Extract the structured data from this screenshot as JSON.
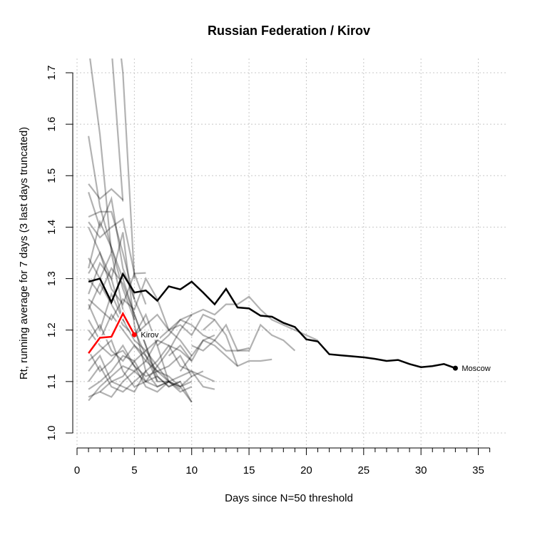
{
  "chart_data": {
    "type": "line",
    "title": "Russian Federation / Kirov",
    "xlabel": "Days since N=50 threshold",
    "ylabel": "Rt, running average for 7 days (3 last days truncated)",
    "xlim": [
      0,
      36
    ],
    "ylim": [
      1.0,
      1.7
    ],
    "x_ticks": [
      0,
      5,
      10,
      15,
      20,
      25,
      30,
      35
    ],
    "x_minor_ticks": [
      1,
      2,
      3,
      4,
      6,
      7,
      8,
      9,
      11,
      12,
      13,
      14,
      16,
      17,
      18,
      19,
      21,
      22,
      23,
      24,
      26,
      27,
      28,
      29,
      31,
      32,
      33,
      34,
      36
    ],
    "y_ticks": [
      1.0,
      1.1,
      1.2,
      1.3,
      1.4,
      1.5,
      1.6,
      1.7
    ],
    "grid": true,
    "colors": {
      "highlight": "#ff0000",
      "reference": "#000000",
      "background": "#999999"
    },
    "series": [
      {
        "name": "Kirov",
        "role": "highlight",
        "label": "Kirov",
        "x": [
          1,
          2,
          3,
          4,
          5
        ],
        "y": [
          1.155,
          1.185,
          1.187,
          1.232,
          1.191
        ]
      },
      {
        "name": "Moscow",
        "role": "reference",
        "label": "Moscow",
        "x": [
          1,
          2,
          3,
          4,
          5,
          6,
          7,
          8,
          9,
          10,
          11,
          12,
          13,
          14,
          15,
          16,
          17,
          18,
          19,
          20,
          21,
          22,
          23,
          24,
          25,
          26,
          27,
          28,
          29,
          30,
          31,
          32,
          33
        ],
        "y": [
          1.294,
          1.3,
          1.254,
          1.309,
          1.273,
          1.277,
          1.257,
          1.285,
          1.279,
          1.294,
          1.273,
          1.25,
          1.28,
          1.244,
          1.242,
          1.228,
          1.226,
          1.214,
          1.206,
          1.182,
          1.178,
          1.153,
          1.151,
          1.149,
          1.147,
          1.144,
          1.14,
          1.142,
          1.134,
          1.128,
          1.13,
          1.134,
          1.126
        ]
      }
    ],
    "background_series": [
      {
        "x": [
          1,
          2,
          3
        ],
        "y": [
          1.75,
          1.58,
          1.35
        ]
      },
      {
        "x": [
          2,
          3,
          4
        ],
        "y": [
          1.9,
          1.75,
          1.45
        ]
      },
      {
        "x": [
          3,
          4,
          5
        ],
        "y": [
          1.9,
          1.7,
          1.3
        ]
      },
      {
        "x": [
          1,
          2,
          3,
          4,
          5
        ],
        "y": [
          1.577,
          1.44,
          1.36,
          1.28,
          1.22
        ]
      },
      {
        "x": [
          1,
          2,
          3,
          4
        ],
        "y": [
          1.484,
          1.455,
          1.474,
          1.453
        ]
      },
      {
        "x": [
          1,
          2,
          3,
          4,
          5
        ],
        "y": [
          1.468,
          1.4,
          1.455,
          1.32,
          1.26
        ]
      },
      {
        "x": [
          1,
          2,
          3,
          4,
          5,
          6
        ],
        "y": [
          1.42,
          1.43,
          1.43,
          1.35,
          1.26,
          1.21
        ]
      },
      {
        "x": [
          1,
          2,
          3,
          4,
          5,
          6
        ],
        "y": [
          1.41,
          1.38,
          1.4,
          1.416,
          1.31,
          1.25
        ]
      },
      {
        "x": [
          1,
          2,
          3,
          4,
          5,
          6
        ],
        "y": [
          1.4,
          1.35,
          1.3,
          1.39,
          1.21,
          1.12
        ]
      },
      {
        "x": [
          1,
          2,
          3,
          4,
          5,
          6,
          7
        ],
        "y": [
          1.32,
          1.41,
          1.36,
          1.3,
          1.23,
          1.17,
          1.1
        ]
      },
      {
        "x": [
          1,
          2,
          3,
          4,
          5,
          6
        ],
        "y": [
          1.34,
          1.3,
          1.35,
          1.24,
          1.19,
          1.21
        ]
      },
      {
        "x": [
          1,
          2,
          3,
          4,
          5,
          6
        ],
        "y": [
          1.31,
          1.35,
          1.28,
          1.25,
          1.31,
          1.311
        ]
      },
      {
        "x": [
          1,
          2,
          3,
          4,
          5,
          6,
          7,
          8,
          9
        ],
        "y": [
          1.3,
          1.27,
          1.32,
          1.29,
          1.23,
          1.17,
          1.11,
          1.09,
          1.1
        ]
      },
      {
        "x": [
          1,
          2,
          3,
          4,
          5,
          6,
          7,
          8,
          9
        ],
        "y": [
          1.27,
          1.33,
          1.3,
          1.22,
          1.2,
          1.15,
          1.1,
          1.1,
          1.085
        ]
      },
      {
        "x": [
          1,
          2,
          3,
          4,
          5,
          6,
          7,
          8,
          9,
          10
        ],
        "y": [
          1.25,
          1.2,
          1.27,
          1.22,
          1.18,
          1.16,
          1.13,
          1.1,
          1.09,
          1.06
        ]
      },
      {
        "x": [
          1,
          2,
          3,
          4,
          5,
          6,
          7,
          8,
          9,
          10
        ],
        "y": [
          1.26,
          1.24,
          1.22,
          1.26,
          1.24,
          1.3,
          1.26,
          1.2,
          1.18,
          1.15
        ]
      },
      {
        "x": [
          1,
          2,
          3,
          4,
          5,
          6,
          7,
          8
        ],
        "y": [
          1.24,
          1.29,
          1.25,
          1.21,
          1.19,
          1.23,
          1.17,
          1.1
        ]
      },
      {
        "x": [
          1,
          2,
          3,
          4,
          5,
          6,
          7,
          8,
          9,
          10,
          11,
          12
        ],
        "y": [
          1.22,
          1.18,
          1.23,
          1.2,
          1.17,
          1.14,
          1.18,
          1.17,
          1.13,
          1.12,
          1.11,
          1.1
        ]
      },
      {
        "x": [
          1,
          2,
          3,
          4,
          5,
          6,
          7,
          8,
          9,
          10,
          11,
          12
        ],
        "y": [
          1.2,
          1.17,
          1.15,
          1.16,
          1.13,
          1.11,
          1.12,
          1.1,
          1.11,
          1.12,
          1.09,
          1.085
        ]
      },
      {
        "x": [
          1,
          2,
          3,
          4,
          5,
          6,
          7,
          8,
          9,
          10,
          11
        ],
        "y": [
          1.18,
          1.21,
          1.16,
          1.14,
          1.17,
          1.15,
          1.12,
          1.13,
          1.15,
          1.11,
          1.12
        ]
      },
      {
        "x": [
          1,
          2,
          3,
          4,
          5,
          6,
          7,
          8,
          9,
          10
        ],
        "y": [
          1.16,
          1.12,
          1.14,
          1.17,
          1.13,
          1.09,
          1.08,
          1.1,
          1.09,
          1.11
        ]
      },
      {
        "x": [
          1,
          2,
          3,
          4,
          5,
          6,
          7,
          8,
          9,
          10
        ],
        "y": [
          1.14,
          1.16,
          1.18,
          1.12,
          1.09,
          1.1,
          1.13,
          1.16,
          1.2,
          1.23
        ]
      },
      {
        "x": [
          1,
          2,
          3,
          4,
          5,
          6,
          7,
          8,
          9,
          10,
          11,
          12
        ],
        "y": [
          1.12,
          1.15,
          1.1,
          1.11,
          1.14,
          1.16,
          1.18,
          1.2,
          1.21,
          1.19,
          1.23,
          1.22
        ]
      },
      {
        "x": [
          1,
          2,
          3,
          4,
          5,
          6,
          7,
          8,
          9,
          10
        ],
        "y": [
          1.1,
          1.13,
          1.09,
          1.08,
          1.1,
          1.12,
          1.09,
          1.1,
          1.08,
          1.09
        ]
      },
      {
        "x": [
          1,
          2,
          3,
          4,
          5,
          6,
          7,
          8
        ],
        "y": [
          1.085,
          1.1,
          1.12,
          1.15,
          1.14,
          1.1,
          1.09,
          1.1
        ]
      },
      {
        "x": [
          1,
          2,
          3,
          4,
          5,
          6,
          7,
          8,
          9,
          10
        ],
        "y": [
          1.07,
          1.08,
          1.1,
          1.09,
          1.08,
          1.12,
          1.14,
          1.17,
          1.16,
          1.14
        ]
      },
      {
        "x": [
          1,
          2,
          3,
          4,
          5,
          6,
          7,
          8,
          9,
          10
        ],
        "y": [
          1.063,
          1.09,
          1.11,
          1.13,
          1.12,
          1.1,
          1.11,
          1.09,
          1.1,
          1.06
        ]
      },
      {
        "x": [
          2,
          3,
          4,
          5,
          6,
          7,
          8,
          9,
          10
        ],
        "y": [
          1.08,
          1.07,
          1.1,
          1.12,
          1.14,
          1.12,
          1.11,
          1.09,
          1.1
        ]
      },
      {
        "x": [
          6,
          7,
          8,
          9,
          10,
          11,
          12,
          13,
          14,
          15,
          16,
          17,
          18,
          19,
          20,
          21
        ],
        "y": [
          1.21,
          1.23,
          1.2,
          1.22,
          1.23,
          1.24,
          1.23,
          1.25,
          1.25,
          1.265,
          1.24,
          1.22,
          1.21,
          1.2,
          1.19,
          1.18
        ]
      },
      {
        "x": [
          7,
          8,
          9,
          10,
          11,
          12,
          13,
          14,
          15,
          16,
          17,
          18,
          19
        ],
        "y": [
          1.17,
          1.19,
          1.22,
          1.21,
          1.19,
          1.18,
          1.21,
          1.16,
          1.16,
          1.21,
          1.19,
          1.18,
          1.16
        ]
      },
      {
        "x": [
          8,
          9,
          10,
          11,
          12,
          13,
          14,
          15,
          16,
          17
        ],
        "y": [
          1.15,
          1.17,
          1.14,
          1.18,
          1.17,
          1.15,
          1.13,
          1.14,
          1.14,
          1.143
        ]
      },
      {
        "x": [
          9,
          10,
          11,
          12
        ],
        "y": [
          1.12,
          1.15,
          1.18,
          1.19
        ]
      },
      {
        "x": [
          10,
          11,
          12,
          13,
          14,
          15
        ],
        "y": [
          1.17,
          1.16,
          1.18,
          1.16,
          1.16,
          1.165
        ]
      },
      {
        "x": [
          11,
          12,
          13,
          14
        ],
        "y": [
          1.2,
          1.22,
          1.19,
          1.13
        ]
      }
    ]
  }
}
